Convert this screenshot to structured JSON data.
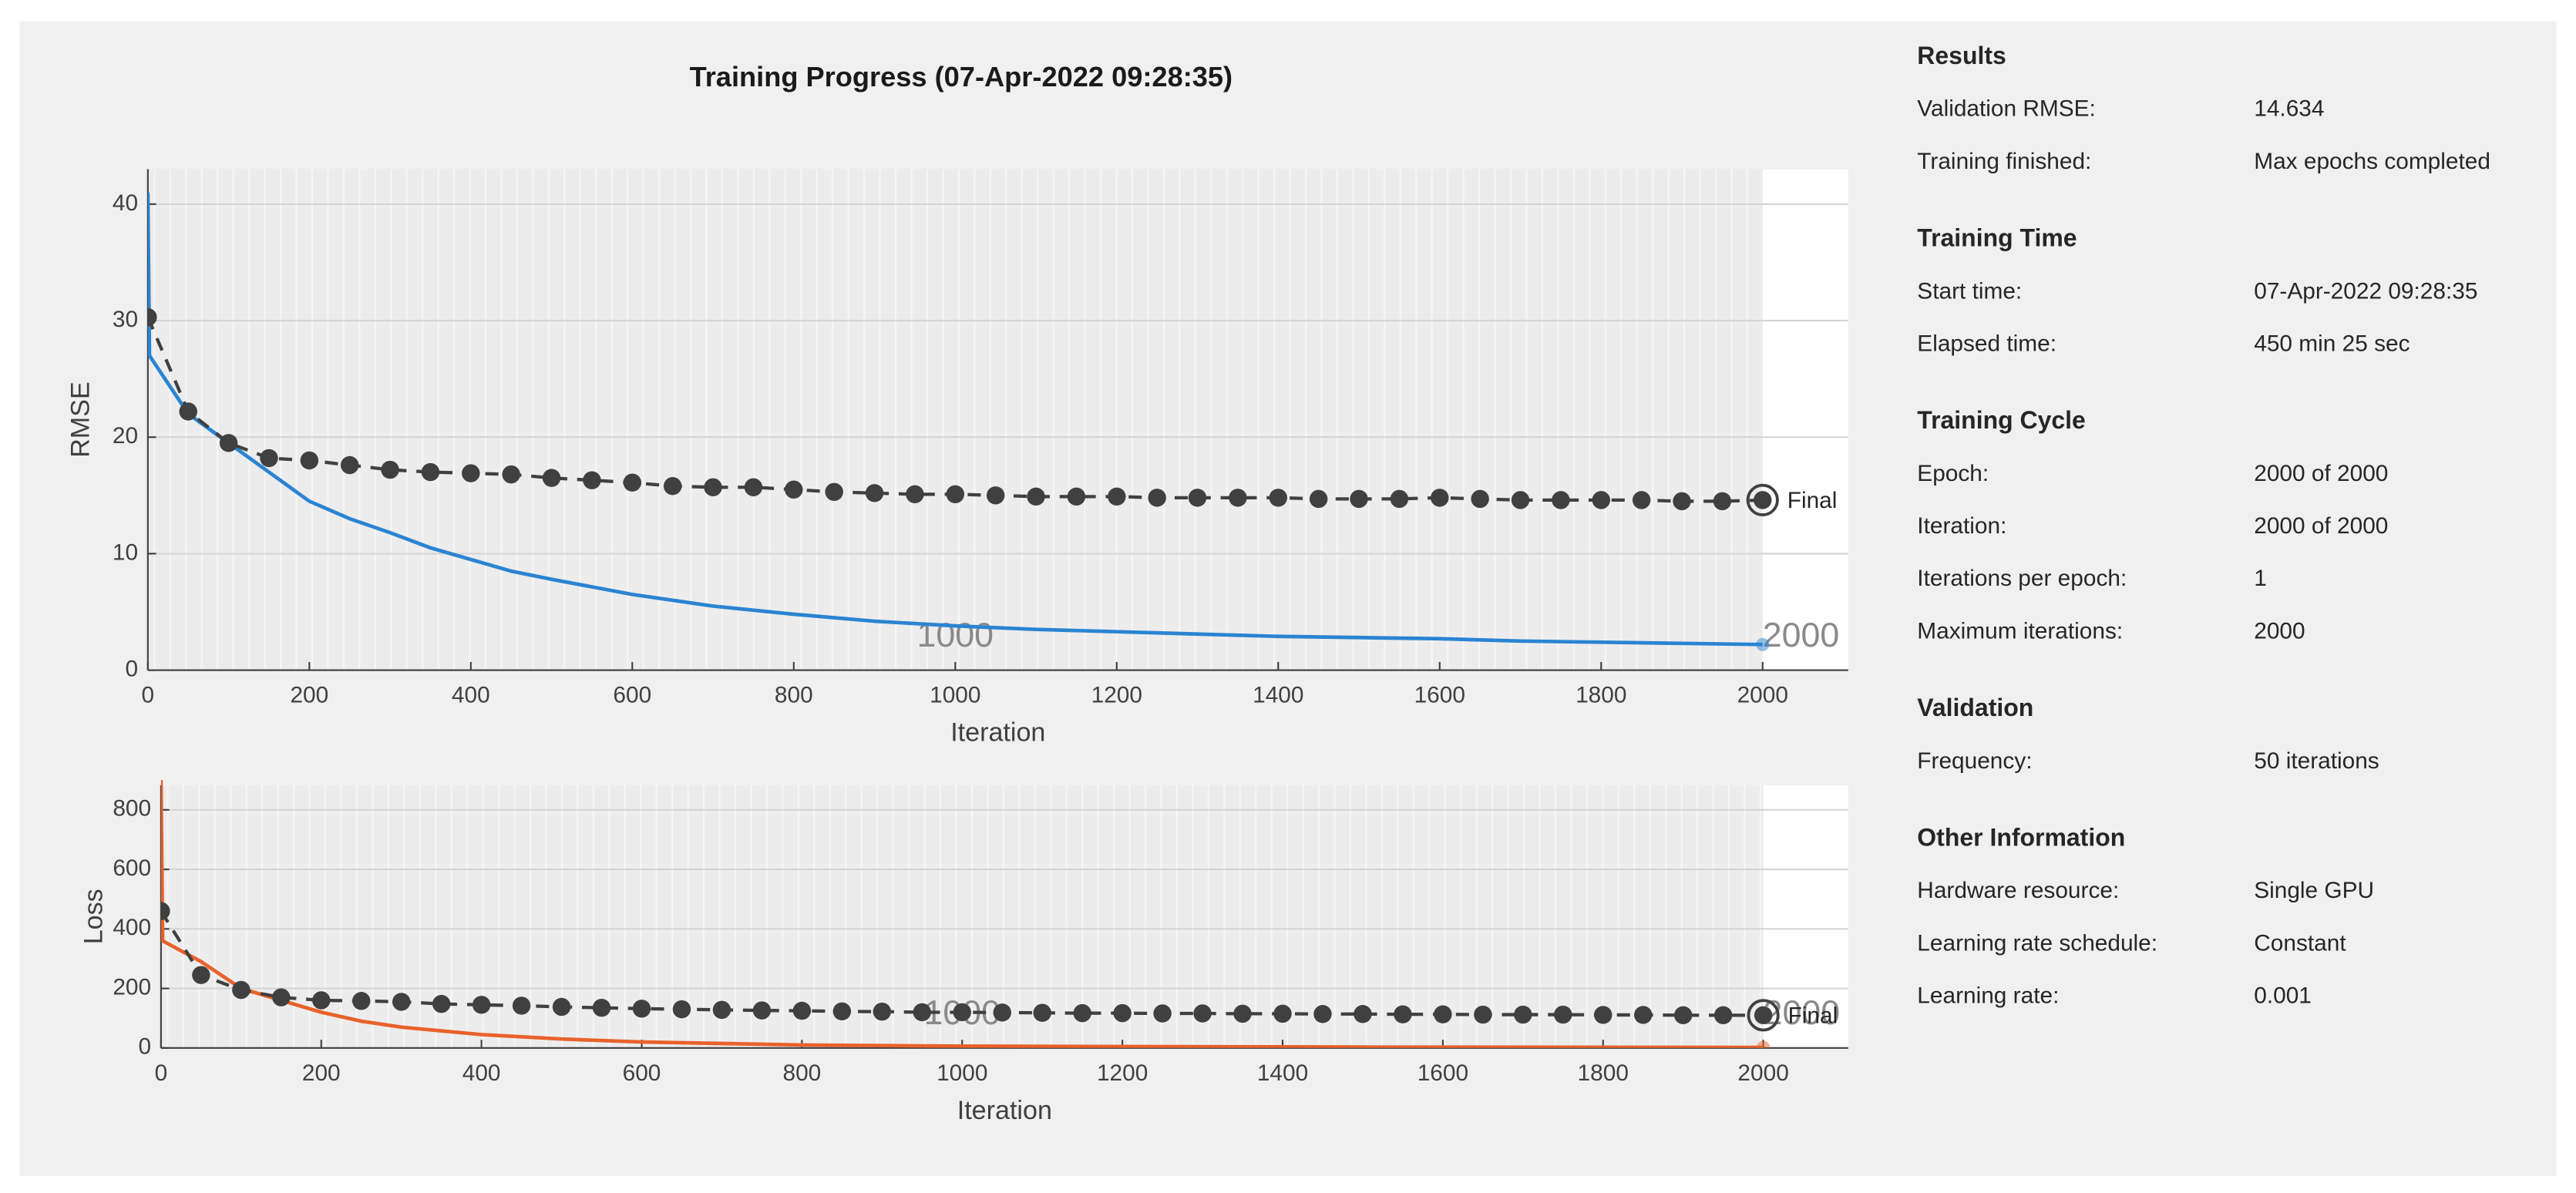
{
  "title": "Training Progress (07-Apr-2022 09:28:35)",
  "chart_data": [
    {
      "type": "line",
      "xlabel": "Iteration",
      "ylabel": "RMSE",
      "xlim": [
        0,
        2106
      ],
      "ylim": [
        0,
        43
      ],
      "xticks": [
        0,
        200,
        400,
        600,
        800,
        1000,
        1200,
        1400,
        1600,
        1800,
        2000
      ],
      "yticks": [
        0,
        10,
        20,
        30,
        40
      ],
      "grid": true,
      "series": [
        {
          "color": "#2a84d2",
          "dash": false,
          "markers": false,
          "x": [
            0,
            2,
            50,
            100,
            150,
            200,
            250,
            300,
            350,
            400,
            450,
            500,
            600,
            700,
            800,
            900,
            1000,
            1100,
            1200,
            1300,
            1400,
            1500,
            1600,
            1700,
            1800,
            1900,
            2000
          ],
          "values": [
            41,
            27,
            22,
            19.5,
            17,
            14.5,
            13,
            11.8,
            10.5,
            9.5,
            8.5,
            7.8,
            6.5,
            5.5,
            4.8,
            4.2,
            3.8,
            3.5,
            3.3,
            3.1,
            2.9,
            2.8,
            2.7,
            2.5,
            2.4,
            2.3,
            2.2
          ]
        },
        {
          "color": "#404040",
          "dash": true,
          "markers": true,
          "x": [
            0,
            50,
            100,
            150,
            200,
            250,
            300,
            350,
            400,
            450,
            500,
            550,
            600,
            650,
            700,
            750,
            800,
            850,
            900,
            950,
            1000,
            1050,
            1100,
            1150,
            1200,
            1250,
            1300,
            1350,
            1400,
            1450,
            1500,
            1550,
            1600,
            1650,
            1700,
            1750,
            1800,
            1850,
            1900,
            1950,
            2000
          ],
          "values": [
            30.3,
            22.2,
            19.5,
            18.2,
            18.0,
            17.6,
            17.2,
            17.0,
            16.9,
            16.8,
            16.5,
            16.3,
            16.1,
            15.8,
            15.7,
            15.7,
            15.5,
            15.3,
            15.2,
            15.1,
            15.1,
            15.0,
            14.9,
            14.9,
            14.9,
            14.8,
            14.8,
            14.8,
            14.8,
            14.7,
            14.7,
            14.7,
            14.8,
            14.7,
            14.6,
            14.6,
            14.6,
            14.6,
            14.5,
            14.5,
            14.6
          ]
        }
      ],
      "final_label": "Final",
      "epoch_markers": [
        1000,
        2000
      ]
    },
    {
      "type": "line",
      "xlabel": "Iteration",
      "ylabel": "Loss",
      "xlim": [
        0,
        2106
      ],
      "ylim": [
        0,
        883
      ],
      "xticks": [
        0,
        200,
        400,
        600,
        800,
        1000,
        1200,
        1400,
        1600,
        1800,
        2000
      ],
      "yticks": [
        0,
        200,
        400,
        600,
        800
      ],
      "grid": true,
      "series": [
        {
          "color": "#e8622a",
          "dash": false,
          "markers": false,
          "x": [
            0,
            2,
            50,
            100,
            150,
            200,
            250,
            300,
            400,
            500,
            600,
            800,
            1000,
            1500,
            2000
          ],
          "values": [
            900,
            360,
            290,
            200,
            160,
            120,
            90,
            70,
            45,
            30,
            20,
            10,
            6,
            3,
            2
          ]
        },
        {
          "color": "#404040",
          "dash": true,
          "markers": true,
          "x": [
            0,
            50,
            100,
            150,
            200,
            250,
            300,
            350,
            400,
            450,
            500,
            550,
            600,
            650,
            700,
            750,
            800,
            850,
            900,
            950,
            1000,
            1050,
            1100,
            1150,
            1200,
            1250,
            1300,
            1350,
            1400,
            1450,
            1500,
            1550,
            1600,
            1650,
            1700,
            1750,
            1800,
            1850,
            1900,
            1950,
            2000
          ],
          "values": [
            460,
            245,
            195,
            170,
            160,
            158,
            155,
            148,
            145,
            142,
            138,
            135,
            132,
            130,
            128,
            126,
            125,
            123,
            122,
            120,
            120,
            119,
            118,
            117,
            117,
            116,
            116,
            115,
            115,
            114,
            114,
            113,
            113,
            112,
            112,
            112,
            111,
            111,
            110,
            110,
            110
          ]
        }
      ],
      "final_label": "Final",
      "epoch_markers": [
        1000,
        2000
      ]
    }
  ],
  "info": {
    "sections": [
      {
        "heading": "Results",
        "rows": [
          [
            "Validation RMSE:",
            "14.634"
          ],
          [
            "Training finished:",
            "Max epochs completed"
          ]
        ]
      },
      {
        "heading": "Training Time",
        "rows": [
          [
            "Start time:",
            "07-Apr-2022 09:28:35"
          ],
          [
            "Elapsed time:",
            "450 min 25 sec"
          ]
        ]
      },
      {
        "heading": "Training Cycle",
        "rows": [
          [
            "Epoch:",
            "2000 of 2000"
          ],
          [
            "Iteration:",
            "2000 of 2000"
          ],
          [
            "Iterations per epoch:",
            "1"
          ],
          [
            "Maximum iterations:",
            "2000"
          ]
        ]
      },
      {
        "heading": "Validation",
        "rows": [
          [
            "Frequency:",
            "50 iterations"
          ]
        ]
      },
      {
        "heading": "Other Information",
        "rows": [
          [
            "Hardware resource:",
            "Single GPU"
          ],
          [
            "Learning rate schedule:",
            "Constant"
          ],
          [
            "Learning rate:",
            "0.001"
          ]
        ]
      }
    ]
  }
}
